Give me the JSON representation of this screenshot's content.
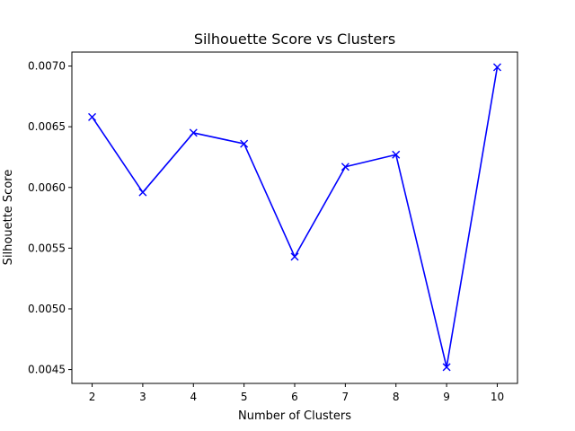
{
  "chart_data": {
    "type": "line",
    "title": "Silhouette Score vs Clusters",
    "xlabel": "Number of Clusters",
    "ylabel": "Silhouette Score",
    "x": [
      2,
      3,
      4,
      5,
      6,
      7,
      8,
      9,
      10
    ],
    "series": [
      {
        "values": [
          0.00658,
          0.00596,
          0.00645,
          0.00636,
          0.00543,
          0.00617,
          0.00627,
          0.00452,
          0.00699
        ],
        "color": "#0000ff",
        "marker": "x"
      }
    ],
    "xticks": [
      "2",
      "3",
      "4",
      "5",
      "6",
      "7",
      "8",
      "9",
      "10"
    ],
    "xtick_values": [
      2,
      3,
      4,
      5,
      6,
      7,
      8,
      9,
      10
    ],
    "yticks": [
      "0.0045",
      "0.0050",
      "0.0055",
      "0.0060",
      "0.0065",
      "0.0070"
    ],
    "ytick_values": [
      0.0045,
      0.005,
      0.0055,
      0.006,
      0.0065,
      0.007
    ],
    "xlim": [
      1.6,
      10.4
    ],
    "ylim": [
      0.004386,
      0.007115
    ],
    "grid": false,
    "legend": false
  }
}
